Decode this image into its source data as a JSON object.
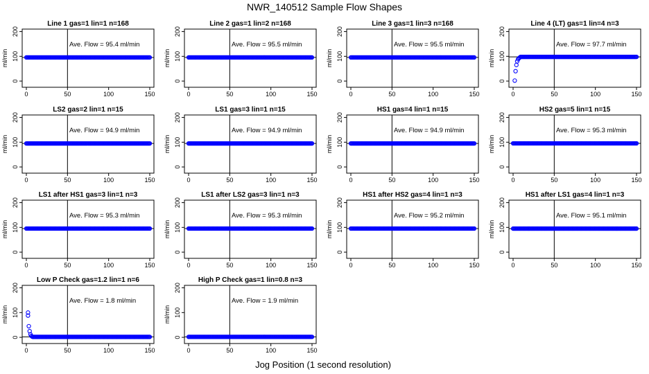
{
  "title": "NWR_140512  Sample Flow Shapes",
  "xlabel": "Jog Position (1 second resolution)",
  "colors": {
    "points": "#0000ff",
    "axes": "#000000",
    "background": "#ffffff"
  },
  "chart_data": [
    {
      "type": "scatter",
      "title": "Line 1 gas=1 lin=1 n=168",
      "ylabel": "ml/min",
      "annotation": "Ave. Flow = 95.4  ml/min",
      "shape": "flat",
      "level": 95.4,
      "xlim": [
        0,
        150
      ],
      "ylim": [
        -25,
        210
      ],
      "xticks": [
        0,
        50,
        100,
        150
      ],
      "yticks": [
        0,
        100,
        200
      ],
      "vline": 50,
      "hline": 95.4
    },
    {
      "type": "scatter",
      "title": "Line 2 gas=1 lin=2 n=168",
      "ylabel": "ml/min",
      "annotation": "Ave. Flow = 95.5  ml/min",
      "shape": "flat",
      "level": 95.5,
      "xlim": [
        0,
        150
      ],
      "ylim": [
        -25,
        210
      ],
      "xticks": [
        0,
        50,
        100,
        150
      ],
      "yticks": [
        0,
        100,
        200
      ],
      "vline": 50,
      "hline": 95.5
    },
    {
      "type": "scatter",
      "title": "Line 3 gas=1 lin=3 n=168",
      "ylabel": "ml/min",
      "annotation": "Ave. Flow = 95.5  ml/min",
      "shape": "flat",
      "level": 95.5,
      "xlim": [
        0,
        150
      ],
      "ylim": [
        -25,
        210
      ],
      "xticks": [
        0,
        50,
        100,
        150
      ],
      "yticks": [
        0,
        100,
        200
      ],
      "vline": 50,
      "hline": 95.5
    },
    {
      "type": "scatter",
      "title": "Line 4 (LT) gas=1 lin=4 n=3",
      "ylabel": "ml/min",
      "annotation": "Ave. Flow = 97.7  ml/min",
      "shape": "rise",
      "level": 97.7,
      "start_points": [
        [
          2,
          2
        ],
        [
          3,
          40
        ],
        [
          4,
          65
        ],
        [
          5,
          80
        ],
        [
          6,
          88
        ],
        [
          7,
          92
        ],
        [
          8,
          95
        ]
      ],
      "xlim": [
        0,
        150
      ],
      "ylim": [
        -25,
        210
      ],
      "xticks": [
        0,
        50,
        100,
        150
      ],
      "yticks": [
        0,
        100,
        200
      ],
      "vline": 50,
      "hline": 97.7
    },
    {
      "type": "scatter",
      "title": "LS2 gas=2 lin=1 n=15",
      "ylabel": "ml/min",
      "annotation": "Ave. Flow = 94.9  ml/min",
      "shape": "flat",
      "level": 94.9,
      "xlim": [
        0,
        150
      ],
      "ylim": [
        -25,
        210
      ],
      "xticks": [
        0,
        50,
        100,
        150
      ],
      "yticks": [
        0,
        100,
        200
      ],
      "vline": 50,
      "hline": 94.9
    },
    {
      "type": "scatter",
      "title": "LS1 gas=3 lin=1 n=15",
      "ylabel": "ml/min",
      "annotation": "Ave. Flow = 94.9  ml/min",
      "shape": "flat",
      "level": 94.9,
      "xlim": [
        0,
        150
      ],
      "ylim": [
        -25,
        210
      ],
      "xticks": [
        0,
        50,
        100,
        150
      ],
      "yticks": [
        0,
        100,
        200
      ],
      "vline": 50,
      "hline": 94.9
    },
    {
      "type": "scatter",
      "title": "HS1 gas=4 lin=1 n=15",
      "ylabel": "ml/min",
      "annotation": "Ave. Flow = 94.9  ml/min",
      "shape": "flat",
      "level": 94.9,
      "xlim": [
        0,
        150
      ],
      "ylim": [
        -25,
        210
      ],
      "xticks": [
        0,
        50,
        100,
        150
      ],
      "yticks": [
        0,
        100,
        200
      ],
      "vline": 50,
      "hline": 94.9
    },
    {
      "type": "scatter",
      "title": "HS2 gas=5 lin=1 n=15",
      "ylabel": "ml/min",
      "annotation": "Ave. Flow = 95.3  ml/min",
      "shape": "flat",
      "level": 95.3,
      "xlim": [
        0,
        150
      ],
      "ylim": [
        -25,
        210
      ],
      "xticks": [
        0,
        50,
        100,
        150
      ],
      "yticks": [
        0,
        100,
        200
      ],
      "vline": 50,
      "hline": 95.3
    },
    {
      "type": "scatter",
      "title": "LS1 after HS1 gas=3 lin=1 n=3",
      "ylabel": "ml/min",
      "annotation": "Ave. Flow = 95.3  ml/min",
      "shape": "flat",
      "level": 95.3,
      "xlim": [
        0,
        150
      ],
      "ylim": [
        -25,
        210
      ],
      "xticks": [
        0,
        50,
        100,
        150
      ],
      "yticks": [
        0,
        100,
        200
      ],
      "vline": 50,
      "hline": 95.3
    },
    {
      "type": "scatter",
      "title": "LS1 after LS2 gas=3 lin=1 n=3",
      "ylabel": "ml/min",
      "annotation": "Ave. Flow = 95.3  ml/min",
      "shape": "flat",
      "level": 95.3,
      "xlim": [
        0,
        150
      ],
      "ylim": [
        -25,
        210
      ],
      "xticks": [
        0,
        50,
        100,
        150
      ],
      "yticks": [
        0,
        100,
        200
      ],
      "vline": 50,
      "hline": 95.3
    },
    {
      "type": "scatter",
      "title": "HS1 after HS2 gas=4 lin=1 n=3",
      "ylabel": "ml/min",
      "annotation": "Ave. Flow = 95.2  ml/min",
      "shape": "flat",
      "level": 95.2,
      "xlim": [
        0,
        150
      ],
      "ylim": [
        -25,
        210
      ],
      "xticks": [
        0,
        50,
        100,
        150
      ],
      "yticks": [
        0,
        100,
        200
      ],
      "vline": 50,
      "hline": 95.2
    },
    {
      "type": "scatter",
      "title": "HS1 after LS1 gas=4 lin=1 n=3",
      "ylabel": "ml/min",
      "annotation": "Ave. Flow = 95.1  ml/min",
      "shape": "flat",
      "level": 95.1,
      "xlim": [
        0,
        150
      ],
      "ylim": [
        -25,
        210
      ],
      "xticks": [
        0,
        50,
        100,
        150
      ],
      "yticks": [
        0,
        100,
        200
      ],
      "vline": 50,
      "hline": 95.1
    },
    {
      "type": "scatter",
      "title": "Low P Check gas=1.2 lin=1 n=6",
      "ylabel": "ml/min",
      "annotation": "Ave. Flow = 1.8  ml/min",
      "shape": "decay",
      "level": 1.8,
      "start_points": [
        [
          2,
          100
        ],
        [
          2,
          88
        ],
        [
          3,
          45
        ],
        [
          4,
          25
        ],
        [
          5,
          12
        ],
        [
          6,
          6
        ],
        [
          7,
          3
        ]
      ],
      "xlim": [
        0,
        150
      ],
      "ylim": [
        -25,
        210
      ],
      "xticks": [
        0,
        50,
        100,
        150
      ],
      "yticks": [
        0,
        100,
        200
      ],
      "vline": 50,
      "hline": 1.8
    },
    {
      "type": "scatter",
      "title": "High P Check gas=1 lin=0.8 n=3",
      "ylabel": "ml/min",
      "annotation": "Ave. Flow = 1.9  ml/min",
      "shape": "flat",
      "level": 1.9,
      "xlim": [
        0,
        150
      ],
      "ylim": [
        -25,
        210
      ],
      "xticks": [
        0,
        50,
        100,
        150
      ],
      "yticks": [
        0,
        100,
        200
      ],
      "vline": 50,
      "hline": 1.9
    }
  ]
}
